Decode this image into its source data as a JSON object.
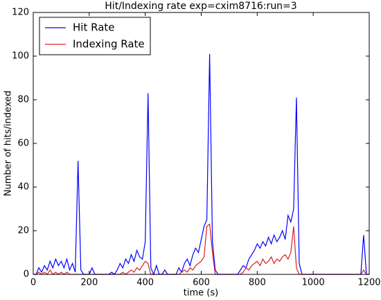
{
  "chart_data": {
    "type": "line",
    "title": "Hit/Indexing rate exp=cxim8716:run=3",
    "xlabel": "time (s)",
    "ylabel": "Number of hits/indexed",
    "x": [
      0,
      10,
      20,
      30,
      40,
      50,
      60,
      70,
      80,
      90,
      100,
      110,
      120,
      130,
      140,
      150,
      160,
      170,
      180,
      190,
      200,
      210,
      220,
      230,
      240,
      250,
      260,
      270,
      280,
      290,
      300,
      310,
      320,
      330,
      340,
      350,
      360,
      370,
      380,
      390,
      400,
      410,
      420,
      430,
      440,
      450,
      460,
      470,
      480,
      490,
      500,
      510,
      520,
      530,
      540,
      550,
      560,
      570,
      580,
      590,
      600,
      610,
      620,
      630,
      640,
      650,
      660,
      670,
      680,
      690,
      700,
      710,
      720,
      730,
      740,
      750,
      760,
      770,
      780,
      790,
      800,
      810,
      820,
      830,
      840,
      850,
      860,
      870,
      880,
      890,
      900,
      910,
      920,
      930,
      940,
      950,
      960,
      970,
      980,
      990,
      1000,
      1010,
      1020,
      1030,
      1040,
      1050,
      1060,
      1070,
      1080,
      1090,
      1100,
      1110,
      1120,
      1130,
      1140,
      1150,
      1160,
      1170,
      1180,
      1190,
      1200
    ],
    "series": [
      {
        "name": "Hit Rate",
        "color": "#0000ff",
        "values": [
          0,
          0,
          3,
          1,
          4,
          2,
          6,
          3,
          7,
          4,
          6,
          3,
          7,
          2,
          5,
          1,
          52,
          2,
          0,
          0,
          0,
          3,
          0,
          0,
          0,
          0,
          0,
          0,
          1,
          0,
          2,
          5,
          3,
          7,
          5,
          9,
          6,
          11,
          8,
          7,
          15,
          83,
          3,
          0,
          4,
          0,
          0,
          2,
          0,
          0,
          0,
          0,
          3,
          1,
          5,
          7,
          4,
          9,
          12,
          10,
          16,
          22,
          25,
          101,
          15,
          2,
          0,
          0,
          0,
          0,
          0,
          0,
          0,
          0,
          2,
          4,
          3,
          7,
          9,
          11,
          14,
          12,
          15,
          13,
          17,
          14,
          18,
          15,
          17,
          20,
          16,
          27,
          24,
          30,
          81,
          5,
          0,
          0,
          0,
          0,
          0,
          0,
          0,
          0,
          0,
          0,
          0,
          0,
          0,
          0,
          0,
          0,
          0,
          0,
          0,
          0,
          0,
          0,
          18,
          0,
          0
        ]
      },
      {
        "name": "Indexing Rate",
        "color": "#d62020",
        "values": [
          0,
          0,
          1,
          0,
          1,
          0,
          2,
          0,
          1,
          0,
          1,
          0,
          1,
          0,
          0,
          0,
          0,
          0,
          0,
          0,
          0,
          0,
          0,
          0,
          0,
          0,
          0,
          0,
          0,
          0,
          0,
          0,
          1,
          0,
          1,
          2,
          1,
          3,
          2,
          4,
          6,
          5,
          0,
          0,
          0,
          0,
          0,
          0,
          0,
          0,
          0,
          0,
          0,
          1,
          2,
          1,
          3,
          2,
          4,
          5,
          6,
          8,
          22,
          23,
          10,
          0,
          0,
          0,
          0,
          0,
          0,
          0,
          0,
          0,
          0,
          1,
          3,
          2,
          4,
          5,
          6,
          4,
          7,
          5,
          6,
          8,
          5,
          7,
          6,
          8,
          9,
          7,
          10,
          22,
          3,
          0,
          0,
          0,
          0,
          0,
          0,
          0,
          0,
          0,
          0,
          0,
          0,
          0,
          0,
          0,
          0,
          0,
          0,
          0,
          0,
          0,
          0,
          0,
          2,
          0,
          0
        ]
      }
    ],
    "xlim": [
      0,
      1200
    ],
    "xticks": [
      0,
      200,
      400,
      600,
      800,
      1000,
      1200
    ],
    "ylim": [
      0,
      120
    ],
    "yticks": [
      0,
      20,
      40,
      60,
      80,
      100,
      120
    ],
    "legend": "upper left"
  }
}
